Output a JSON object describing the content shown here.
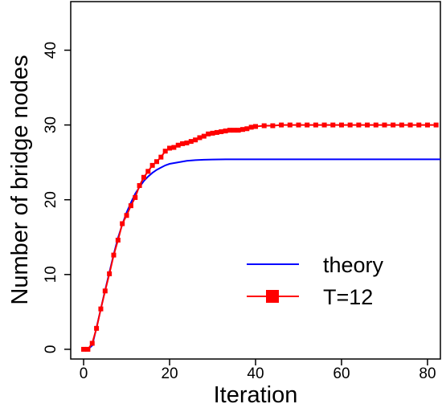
{
  "chart_data": {
    "type": "line",
    "title": "",
    "xlabel": "Iteration",
    "ylabel": "Number of bridge nodes",
    "xlim": [
      -3,
      83
    ],
    "ylim": [
      -1.3,
      46.5
    ],
    "xticks": [
      0,
      20,
      40,
      60,
      80
    ],
    "yticks": [
      0,
      10,
      20,
      30,
      40
    ],
    "grid": false,
    "legend_position": "right",
    "series": [
      {
        "name": "theory",
        "style": "line",
        "color": "#0000ff",
        "x": [
          0,
          1,
          2,
          3,
          4,
          5,
          6,
          7,
          8,
          9,
          10,
          11,
          12,
          13,
          14,
          15,
          16,
          17,
          18,
          19,
          20,
          22,
          24,
          26,
          28,
          30,
          33,
          36,
          40,
          45,
          50,
          60,
          70,
          83
        ],
        "y": [
          0.0,
          0.0,
          0.5,
          2.9,
          5.4,
          7.9,
          10.3,
          12.7,
          14.9,
          16.7,
          18.3,
          19.6,
          20.8,
          21.7,
          22.5,
          23.1,
          23.6,
          24.0,
          24.3,
          24.6,
          24.8,
          25.0,
          25.2,
          25.3,
          25.35,
          25.38,
          25.4,
          25.4,
          25.4,
          25.4,
          25.4,
          25.4,
          25.4,
          25.4
        ]
      },
      {
        "name": "T=12",
        "style": "line+square-markers",
        "color": "#ff0000",
        "x": [
          0,
          1,
          2,
          3,
          4,
          5,
          6,
          7,
          8,
          9,
          10,
          11,
          12,
          13,
          14,
          15,
          16,
          17,
          18,
          19,
          20,
          21,
          22,
          23,
          24,
          25,
          26,
          27,
          28,
          29,
          30,
          31,
          32,
          33,
          34,
          35,
          36,
          37,
          38,
          39,
          40,
          42,
          44,
          46,
          48,
          50,
          52,
          54,
          56,
          58,
          60,
          62,
          64,
          66,
          68,
          70,
          72,
          74,
          76,
          78,
          80,
          82
        ],
        "y": [
          0.0,
          0.0,
          0.8,
          2.8,
          5.4,
          7.8,
          10.1,
          12.6,
          14.6,
          16.8,
          17.9,
          19.2,
          20.3,
          21.9,
          23.0,
          23.8,
          24.6,
          25.1,
          25.7,
          26.5,
          26.9,
          27.0,
          27.3,
          27.5,
          27.6,
          27.8,
          28.0,
          28.3,
          28.5,
          28.8,
          28.9,
          29.0,
          29.1,
          29.2,
          29.3,
          29.3,
          29.3,
          29.4,
          29.5,
          29.7,
          29.8,
          29.9,
          29.9,
          30.0,
          30.0,
          30.0,
          30.0,
          30.0,
          30.0,
          30.0,
          30.0,
          30.0,
          30.0,
          30.0,
          30.0,
          30.0,
          30.0,
          30.0,
          30.0,
          30.0,
          30.0,
          30.0
        ]
      }
    ]
  }
}
